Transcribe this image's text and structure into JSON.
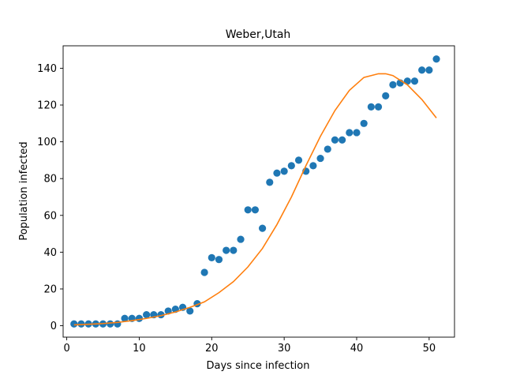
{
  "chart_data": {
    "type": "scatter",
    "title": "Weber,Utah",
    "xlabel": "Days since infection",
    "ylabel": "Population infected",
    "xlim": [
      -0.5,
      53.5
    ],
    "ylim": [
      -6.2,
      152.2
    ],
    "xticks": [
      0,
      10,
      20,
      30,
      40,
      50
    ],
    "yticks": [
      0,
      20,
      40,
      60,
      80,
      100,
      120,
      140
    ],
    "grid": false,
    "series": [
      {
        "type": "scatter",
        "color": "#1f77b4",
        "x": [
          1,
          2,
          3,
          4,
          5,
          6,
          7,
          8,
          9,
          10,
          11,
          12,
          13,
          14,
          15,
          16,
          17,
          18,
          19,
          20,
          21,
          22,
          23,
          24,
          25,
          26,
          27,
          28,
          29,
          30,
          31,
          32,
          33,
          34,
          35,
          36,
          37,
          38,
          39,
          40,
          41,
          42,
          43,
          44,
          45,
          46,
          47,
          48,
          49,
          50,
          51
        ],
        "y": [
          1,
          1,
          1,
          1,
          1,
          1,
          1,
          4,
          4,
          4,
          6,
          6,
          6,
          8,
          9,
          10,
          8,
          12,
          29,
          37,
          36,
          41,
          41,
          47,
          63,
          63,
          53,
          78,
          83,
          84,
          87,
          90,
          84,
          87,
          91,
          96,
          101,
          101,
          105,
          105,
          110,
          119,
          119,
          125,
          131,
          132,
          133,
          133,
          139,
          139,
          145
        ]
      },
      {
        "type": "line",
        "color": "#ff7f0e",
        "x": [
          1,
          3,
          5,
          7,
          9,
          11,
          13,
          15,
          17,
          19,
          21,
          23,
          25,
          27,
          29,
          31,
          33,
          35,
          37,
          39,
          41,
          43,
          44,
          45,
          47,
          49,
          51
        ],
        "y": [
          0.5,
          0.8,
          1.2,
          1.8,
          2.8,
          4.0,
          5.5,
          7.5,
          10,
          13,
          18,
          24,
          32,
          42,
          55,
          70,
          87,
          103,
          117,
          128,
          135,
          137,
          137,
          136,
          131,
          123,
          113
        ]
      }
    ]
  }
}
